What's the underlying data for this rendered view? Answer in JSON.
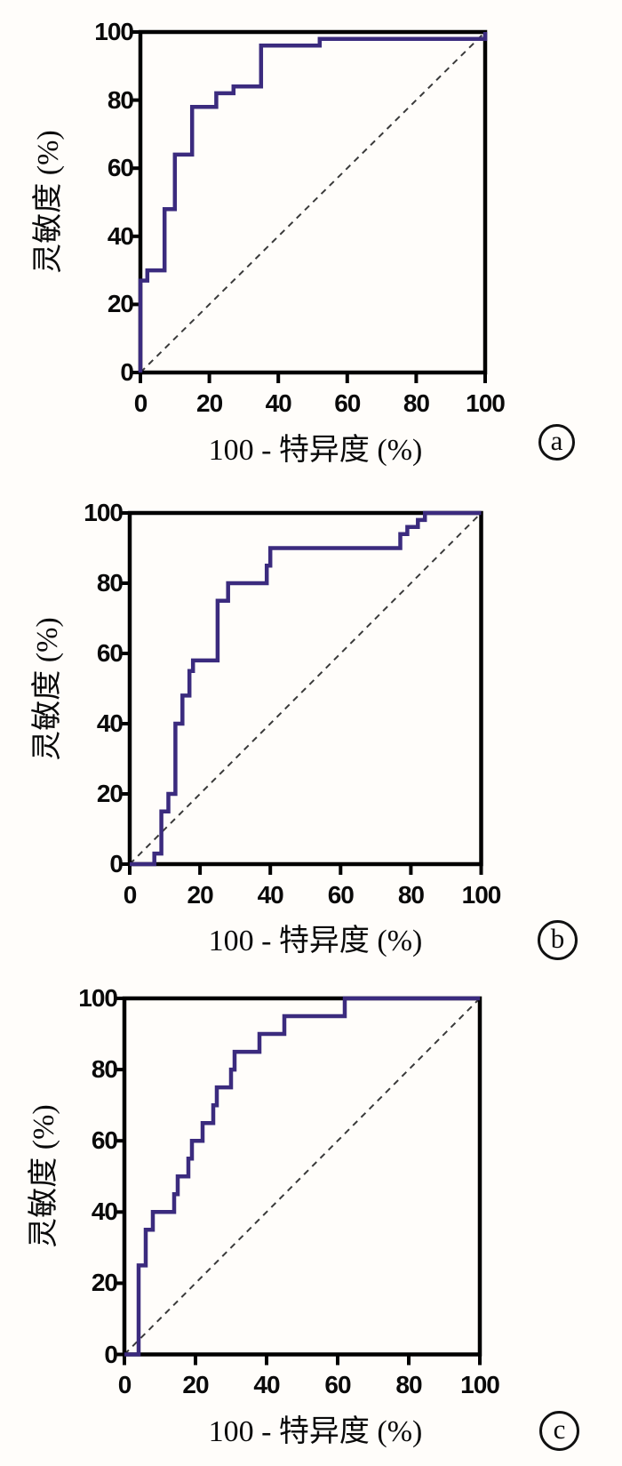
{
  "figure": {
    "description": "Three stacked ROC curve panels (a, b, c), each plotting sensitivity versus 100 - specificity with a dashed chance diagonal",
    "background": "#fffdfa"
  },
  "style": {
    "curve_color": "#3b2b7e",
    "axis_color": "#000000",
    "diagonal_color": "#3a3a3a",
    "text_color": "#0a0a0a"
  },
  "chart_data": [
    {
      "type": "line",
      "subtype": "roc-step-curve",
      "badge": "a",
      "title": "",
      "xlabel": "100 - 特异度 (%)",
      "ylabel": "灵敏度 (%)",
      "xlim": [
        0,
        100
      ],
      "ylim": [
        0,
        100
      ],
      "x_ticks": [
        0,
        20,
        40,
        60,
        80,
        100
      ],
      "y_ticks": [
        0,
        20,
        40,
        60,
        80,
        100
      ],
      "grid": false,
      "legend": "none",
      "diagonal_reference_line": {
        "from": [
          0,
          0
        ],
        "to": [
          100,
          100
        ],
        "style": "dashed"
      },
      "series": [
        {
          "name": "ROC curve",
          "points": [
            [
              0,
              0
            ],
            [
              0,
              27
            ],
            [
              2,
              27
            ],
            [
              2,
              30
            ],
            [
              7,
              30
            ],
            [
              7,
              48
            ],
            [
              10,
              48
            ],
            [
              10,
              64
            ],
            [
              15,
              64
            ],
            [
              15,
              78
            ],
            [
              22,
              78
            ],
            [
              22,
              82
            ],
            [
              27,
              82
            ],
            [
              27,
              84
            ],
            [
              35,
              84
            ],
            [
              35,
              96
            ],
            [
              52,
              96
            ],
            [
              52,
              98
            ],
            [
              100,
              98
            ],
            [
              100,
              100
            ]
          ]
        }
      ]
    },
    {
      "type": "line",
      "subtype": "roc-step-curve",
      "badge": "b",
      "title": "",
      "xlabel": "100 - 特异度 (%)",
      "ylabel": "灵敏度 (%)",
      "xlim": [
        0,
        100
      ],
      "ylim": [
        0,
        100
      ],
      "x_ticks": [
        0,
        20,
        40,
        60,
        80,
        100
      ],
      "y_ticks": [
        0,
        20,
        40,
        60,
        80,
        100
      ],
      "grid": false,
      "legend": "none",
      "diagonal_reference_line": {
        "from": [
          0,
          0
        ],
        "to": [
          100,
          100
        ],
        "style": "dashed"
      },
      "series": [
        {
          "name": "ROC curve",
          "points": [
            [
              0,
              0
            ],
            [
              7,
              0
            ],
            [
              7,
              3
            ],
            [
              9,
              3
            ],
            [
              9,
              15
            ],
            [
              11,
              15
            ],
            [
              11,
              20
            ],
            [
              13,
              20
            ],
            [
              13,
              40
            ],
            [
              15,
              40
            ],
            [
              15,
              48
            ],
            [
              17,
              48
            ],
            [
              17,
              55
            ],
            [
              18,
              55
            ],
            [
              18,
              58
            ],
            [
              25,
              58
            ],
            [
              25,
              75
            ],
            [
              28,
              75
            ],
            [
              28,
              80
            ],
            [
              39,
              80
            ],
            [
              39,
              85
            ],
            [
              40,
              85
            ],
            [
              40,
              90
            ],
            [
              77,
              90
            ],
            [
              77,
              94
            ],
            [
              79,
              94
            ],
            [
              79,
              96
            ],
            [
              82,
              96
            ],
            [
              82,
              98
            ],
            [
              84,
              98
            ],
            [
              84,
              100
            ],
            [
              100,
              100
            ]
          ]
        }
      ]
    },
    {
      "type": "line",
      "subtype": "roc-step-curve",
      "badge": "c",
      "title": "",
      "xlabel": "100 - 特异度 (%)",
      "ylabel": "灵敏度 (%)",
      "xlim": [
        0,
        100
      ],
      "ylim": [
        0,
        100
      ],
      "x_ticks": [
        0,
        20,
        40,
        60,
        80,
        100
      ],
      "y_ticks": [
        0,
        20,
        40,
        60,
        80,
        100
      ],
      "grid": false,
      "legend": "none",
      "diagonal_reference_line": {
        "from": [
          0,
          0
        ],
        "to": [
          100,
          100
        ],
        "style": "dashed"
      },
      "series": [
        {
          "name": "ROC curve",
          "points": [
            [
              0,
              0
            ],
            [
              4,
              0
            ],
            [
              4,
              25
            ],
            [
              6,
              25
            ],
            [
              6,
              35
            ],
            [
              8,
              35
            ],
            [
              8,
              40
            ],
            [
              14,
              40
            ],
            [
              14,
              45
            ],
            [
              15,
              45
            ],
            [
              15,
              50
            ],
            [
              18,
              50
            ],
            [
              18,
              55
            ],
            [
              19,
              55
            ],
            [
              19,
              60
            ],
            [
              22,
              60
            ],
            [
              22,
              65
            ],
            [
              25,
              65
            ],
            [
              25,
              70
            ],
            [
              26,
              70
            ],
            [
              26,
              75
            ],
            [
              30,
              75
            ],
            [
              30,
              80
            ],
            [
              31,
              80
            ],
            [
              31,
              85
            ],
            [
              38,
              85
            ],
            [
              38,
              90
            ],
            [
              45,
              90
            ],
            [
              45,
              95
            ],
            [
              62,
              95
            ],
            [
              62,
              100
            ],
            [
              100,
              100
            ]
          ]
        }
      ]
    }
  ]
}
